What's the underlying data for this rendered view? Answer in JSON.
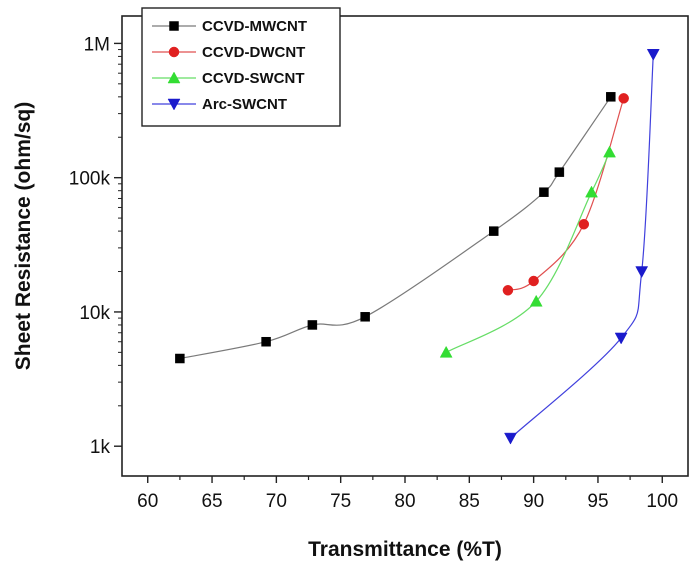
{
  "chart_data": {
    "type": "scatter",
    "xlabel": "Transmittance (%T)",
    "ylabel": "Sheet Resistance (ohm/sq)",
    "xlim": [
      58,
      102
    ],
    "ylim": [
      600,
      1600000
    ],
    "yscale": "log",
    "x_ticks": [
      60,
      65,
      70,
      75,
      80,
      85,
      90,
      95,
      100
    ],
    "y_ticks": [
      {
        "value": 1000,
        "label": "1k"
      },
      {
        "value": 10000,
        "label": "10k"
      },
      {
        "value": 100000,
        "label": "100k"
      },
      {
        "value": 1000000,
        "label": "1M"
      }
    ],
    "grid": false,
    "legend_position": "top-left",
    "series": [
      {
        "name": "CCVD-MWCNT",
        "marker": "square",
        "marker_color": "#000000",
        "line_color": "#7a7a7a",
        "points": [
          [
            62.5,
            4500
          ],
          [
            69.2,
            6000
          ],
          [
            72.8,
            8000
          ],
          [
            76.9,
            9200
          ],
          [
            86.9,
            40000
          ],
          [
            90.8,
            78000
          ],
          [
            92.0,
            110000
          ],
          [
            96.0,
            400000
          ]
        ]
      },
      {
        "name": "CCVD-DWCNT",
        "marker": "circle",
        "marker_color": "#e02020",
        "line_color": "#e05050",
        "points": [
          [
            88.0,
            14500
          ],
          [
            90.0,
            17000
          ],
          [
            93.9,
            45000
          ],
          [
            97.0,
            390000
          ]
        ]
      },
      {
        "name": "CCVD-SWCNT",
        "marker": "triangle-up",
        "marker_color": "#33dd33",
        "line_color": "#66dd66",
        "points": [
          [
            83.2,
            5000
          ],
          [
            90.2,
            12000
          ],
          [
            94.5,
            78000
          ],
          [
            95.9,
            155000
          ]
        ]
      },
      {
        "name": "Arc-SWCNT",
        "marker": "triangle-down",
        "marker_color": "#1a1acc",
        "line_color": "#4040dd",
        "points": [
          [
            88.2,
            1150
          ],
          [
            96.8,
            6400
          ],
          [
            98.4,
            20000
          ],
          [
            99.3,
            830000
          ]
        ]
      }
    ]
  }
}
